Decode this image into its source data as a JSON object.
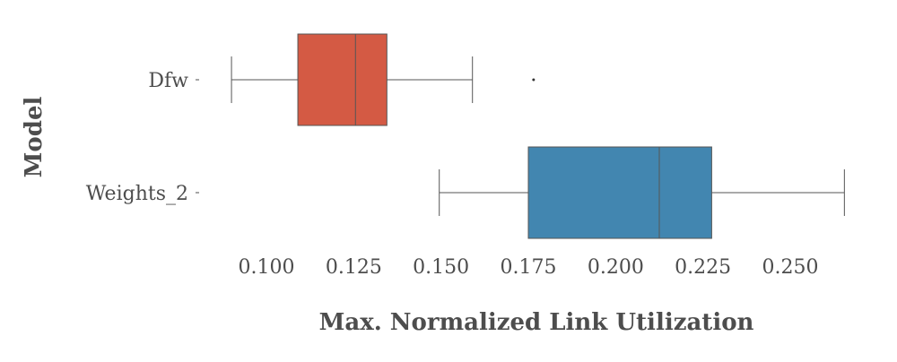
{
  "chart_data": {
    "type": "boxplot",
    "orientation": "horizontal",
    "xlabel": "Max. Normalized Link Utilization",
    "ylabel": "Model",
    "xlim": [
      0.085,
      0.268
    ],
    "xticks": [
      0.1,
      0.125,
      0.15,
      0.175,
      0.2,
      0.225,
      0.25
    ],
    "xtick_labels": [
      "0.100",
      "0.125",
      "0.150",
      "0.175",
      "0.200",
      "0.225",
      "0.250"
    ],
    "grid": false,
    "legend": "none",
    "series": [
      {
        "name": "Dfw",
        "color": "#d45a44",
        "whisker_low": 0.09,
        "q1": 0.109,
        "median": 0.1255,
        "q3": 0.1345,
        "whisker_high": 0.159,
        "outliers": [
          0.1765
        ]
      },
      {
        "name": "Weights_2",
        "color": "#4286b0",
        "whisker_low": 0.1495,
        "q1": 0.175,
        "median": 0.2125,
        "q3": 0.2275,
        "whisker_high": 0.2655,
        "outliers": []
      }
    ]
  }
}
